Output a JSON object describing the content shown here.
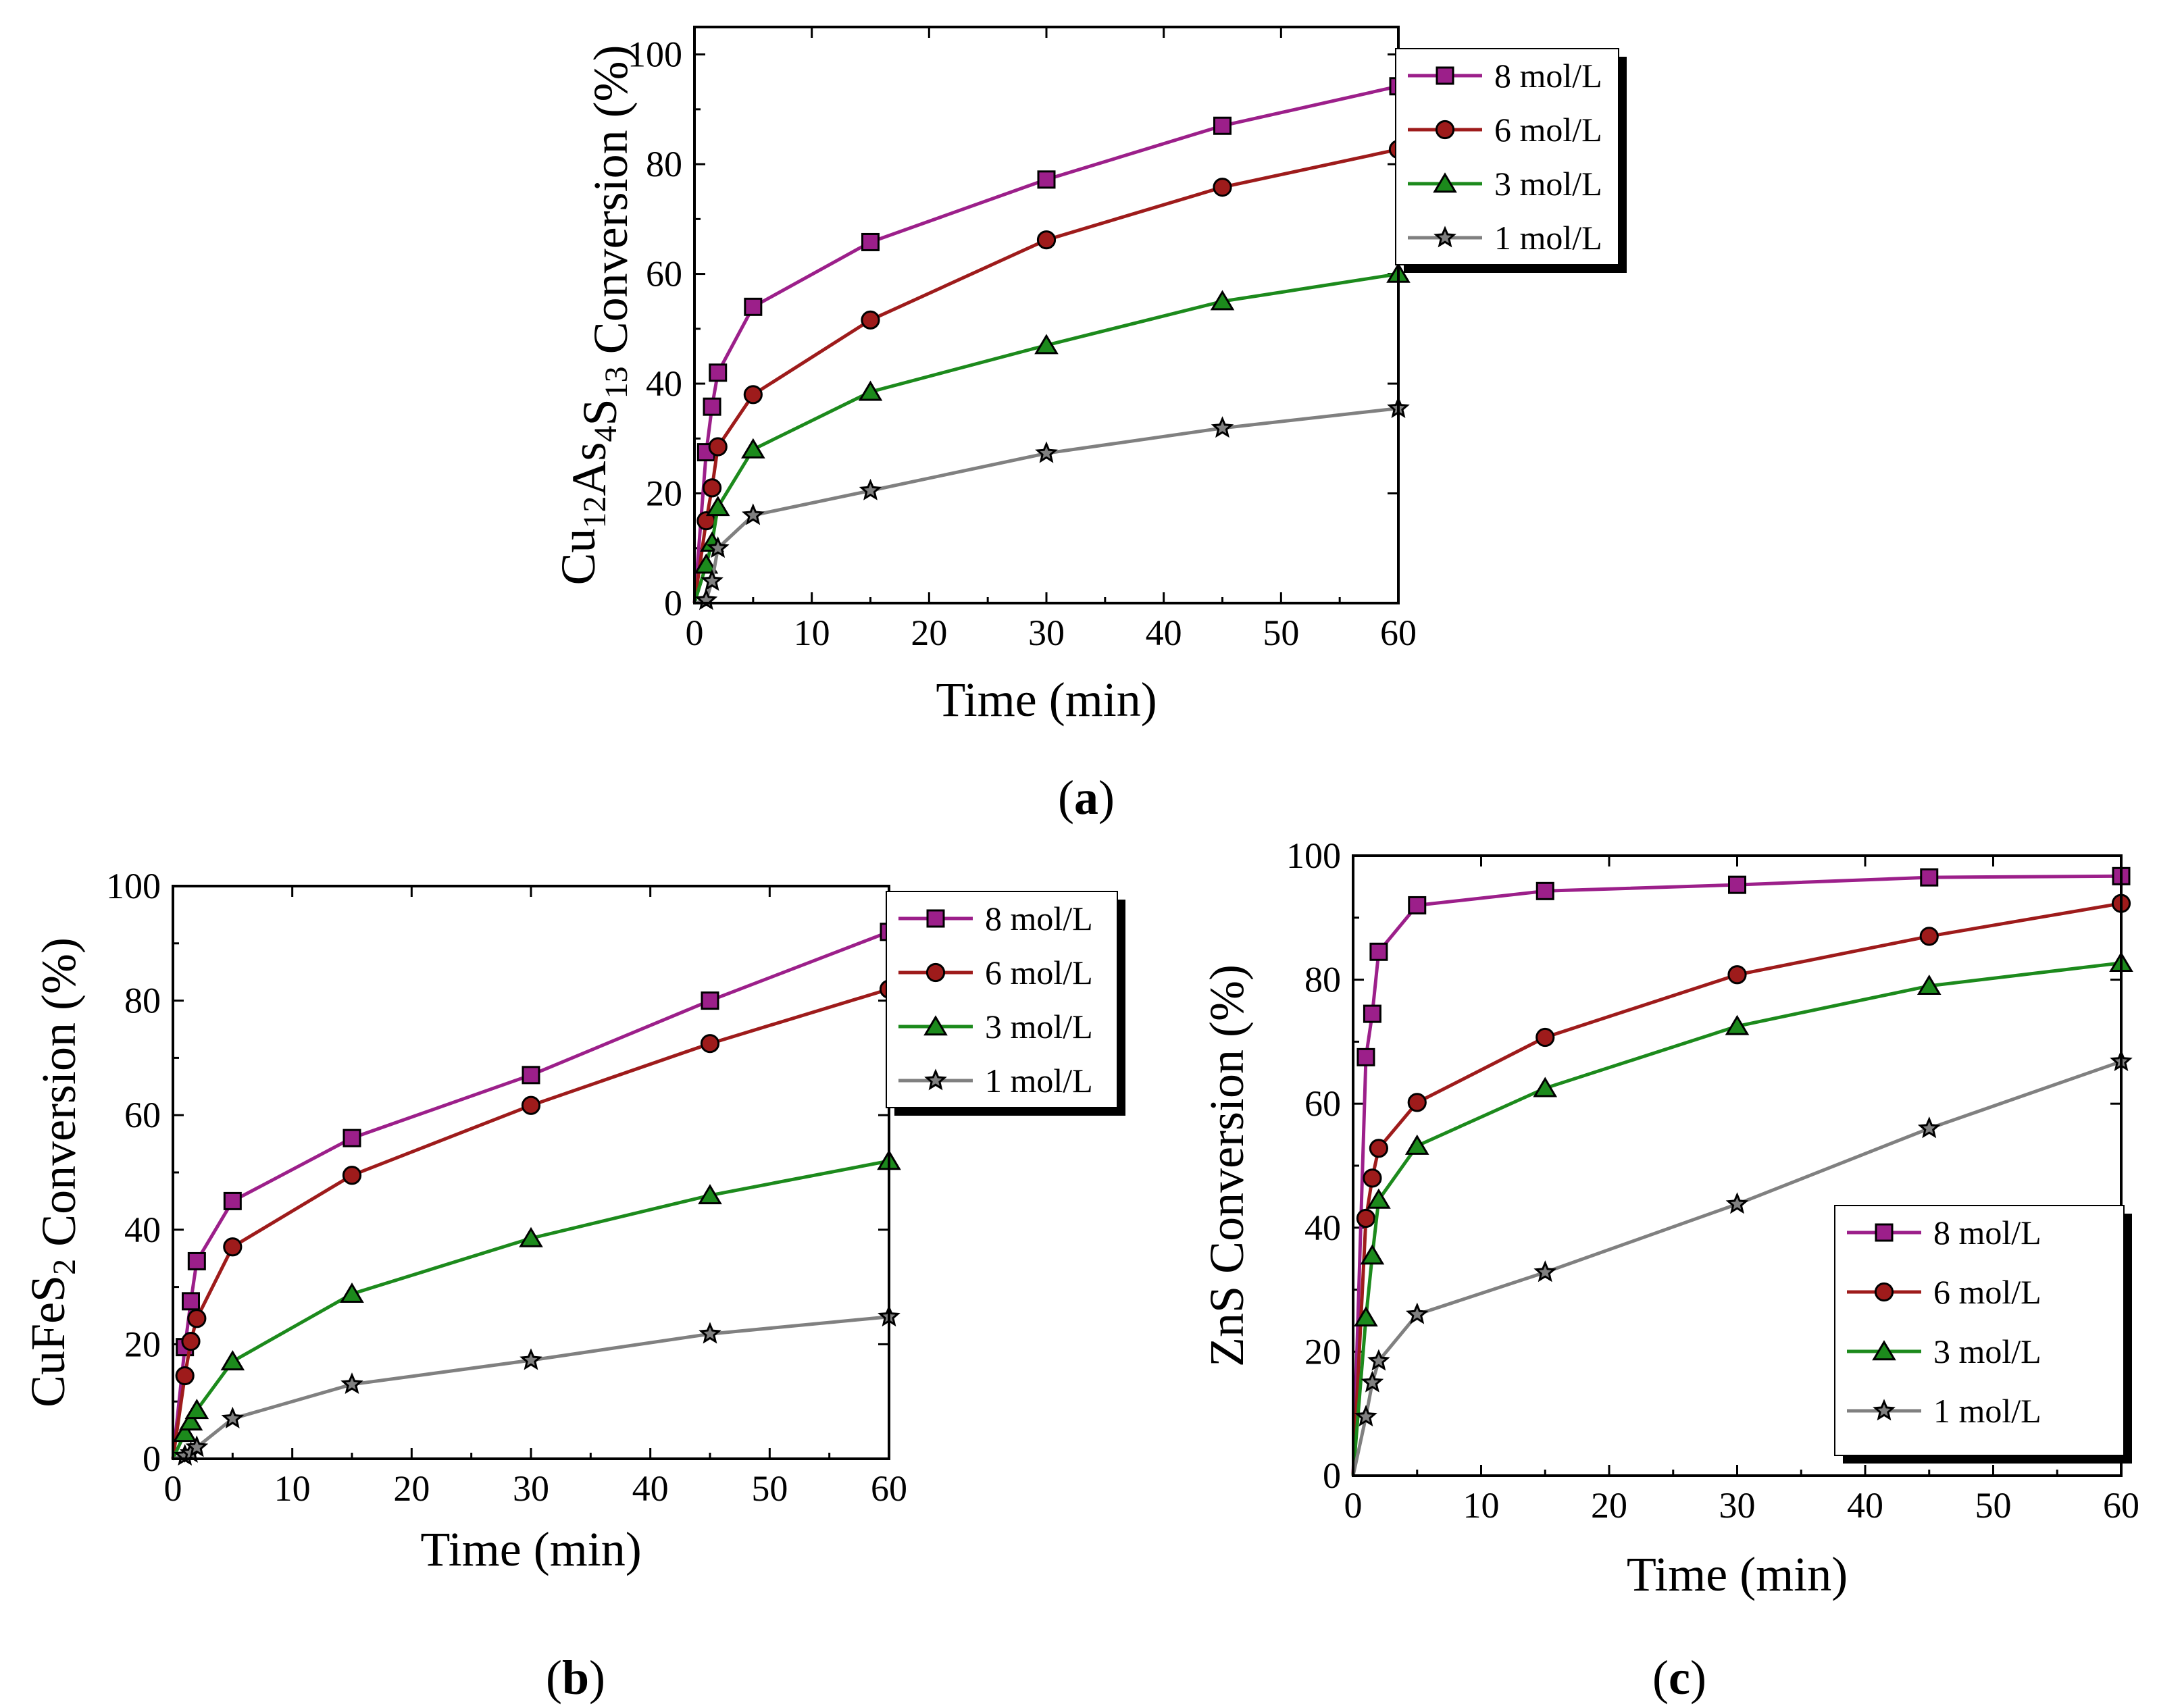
{
  "chart_data": [
    {
      "id": "a",
      "type": "line",
      "caption_letter": "a",
      "xlabel": "Time (min)",
      "ylabel": {
        "prefix": "Cu",
        "sub1": "12",
        "mid": "As",
        "sub2": "4",
        "mid2": "S",
        "sub3": "13",
        "suffix": "  Conversion (%)"
      },
      "xlim": [
        0,
        60
      ],
      "ylim": [
        0,
        105
      ],
      "xticks": [
        0,
        10,
        20,
        30,
        40,
        50,
        60
      ],
      "yticks": [
        0,
        20,
        40,
        60,
        80,
        100
      ],
      "legend_position": "top-right-outside",
      "x": [
        0,
        1,
        1.5,
        2,
        5,
        15,
        30,
        45,
        60
      ],
      "series": [
        {
          "name": "8 mol/L",
          "marker": "square",
          "color": "#9c1f8a",
          "values": [
            0,
            27.5,
            35.8,
            42,
            54,
            65.8,
            77.2,
            87,
            94.2
          ]
        },
        {
          "name": "6 mol/L",
          "marker": "circle",
          "color": "#9e1b1b",
          "values": [
            0,
            15,
            21,
            28.5,
            38,
            51.6,
            66.2,
            75.8,
            82.7
          ]
        },
        {
          "name": "3 mol/L",
          "marker": "triangle",
          "color": "#1c8a1c",
          "values": [
            0,
            7,
            11,
            17.5,
            28,
            38.5,
            47,
            55,
            60
          ]
        },
        {
          "name": "1 mol/L",
          "marker": "star",
          "color": "#808080",
          "values": [
            0,
            0.5,
            4,
            10,
            16,
            20.5,
            27.3,
            31.9,
            35.5
          ]
        }
      ]
    },
    {
      "id": "b",
      "type": "line",
      "caption_letter": "b",
      "xlabel": "Time (min)",
      "ylabel": {
        "prefix": "CuFeS",
        "sub1": "2",
        "mid": "",
        "sub2": "",
        "mid2": "",
        "sub3": "",
        "suffix": " Conversion (%)"
      },
      "xlim": [
        0,
        60
      ],
      "ylim": [
        0,
        100
      ],
      "xticks": [
        0,
        10,
        20,
        30,
        40,
        50,
        60
      ],
      "yticks": [
        0,
        20,
        40,
        60,
        80,
        100
      ],
      "legend_position": "top-right-outside",
      "x": [
        0,
        1,
        1.5,
        2,
        5,
        15,
        30,
        45,
        60
      ],
      "series": [
        {
          "name": "8 mol/L",
          "marker": "square",
          "color": "#9c1f8a",
          "values": [
            0,
            19.5,
            27.5,
            34.5,
            45,
            56,
            67,
            80,
            92
          ]
        },
        {
          "name": "6 mol/L",
          "marker": "circle",
          "color": "#9e1b1b",
          "values": [
            0,
            14.5,
            20.5,
            24.5,
            37,
            49.5,
            61.7,
            72.5,
            82
          ]
        },
        {
          "name": "3 mol/L",
          "marker": "triangle",
          "color": "#1c8a1c",
          "values": [
            0,
            4.5,
            6.5,
            8.5,
            17,
            28.8,
            38.5,
            46,
            52
          ]
        },
        {
          "name": "1 mol/L",
          "marker": "star",
          "color": "#808080",
          "values": [
            0,
            0.5,
            1,
            2,
            7,
            13,
            17.2,
            21.8,
            24.8
          ]
        }
      ]
    },
    {
      "id": "c",
      "type": "line",
      "caption_letter": "c",
      "xlabel": "Time (min)",
      "ylabel": {
        "prefix": "ZnS  Conversion (%)",
        "sub1": "",
        "mid": "",
        "sub2": "",
        "mid2": "",
        "sub3": "",
        "suffix": ""
      },
      "xlim": [
        0,
        60
      ],
      "ylim": [
        0,
        100
      ],
      "xticks": [
        0,
        10,
        20,
        30,
        40,
        50,
        60
      ],
      "yticks": [
        0,
        20,
        40,
        60,
        80,
        100
      ],
      "legend_position": "bottom-right",
      "x": [
        0,
        1,
        1.5,
        2,
        5,
        15,
        30,
        45,
        60
      ],
      "series": [
        {
          "name": "8 mol/L",
          "marker": "square",
          "color": "#9c1f8a",
          "values": [
            0,
            67.5,
            74.5,
            84.5,
            92,
            94.3,
            95.3,
            96.5,
            96.7
          ]
        },
        {
          "name": "6 mol/L",
          "marker": "circle",
          "color": "#9e1b1b",
          "values": [
            0,
            41.5,
            48,
            52.8,
            60.2,
            70.7,
            80.8,
            87,
            92.3
          ]
        },
        {
          "name": "3 mol/L",
          "marker": "triangle",
          "color": "#1c8a1c",
          "values": [
            0,
            25.5,
            35.5,
            44.5,
            53.2,
            62.5,
            72.5,
            79,
            82.7
          ]
        },
        {
          "name": "1 mol/L",
          "marker": "star",
          "color": "#808080",
          "values": [
            0,
            9.5,
            15,
            18.5,
            26,
            32.8,
            43.8,
            56,
            66.8
          ]
        }
      ]
    }
  ]
}
